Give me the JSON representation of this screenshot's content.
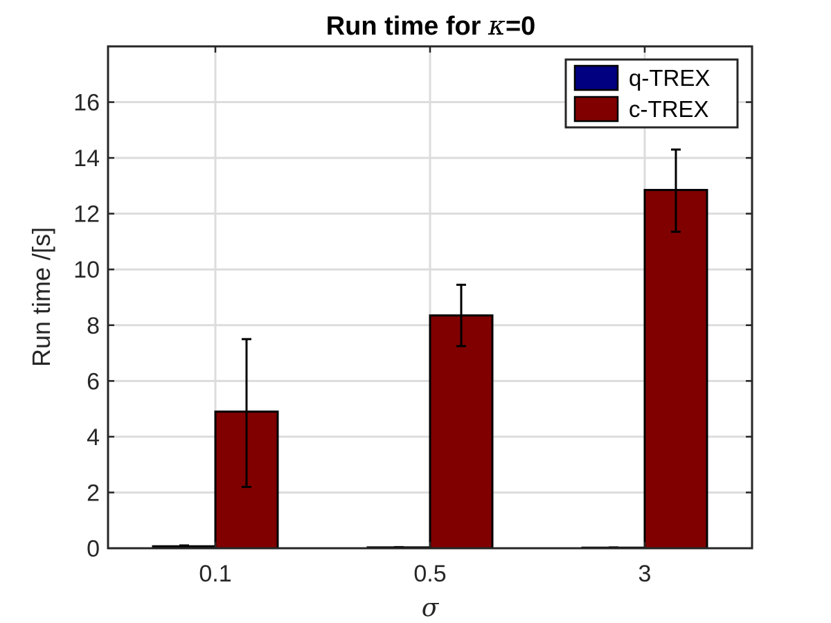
{
  "chart_data": {
    "type": "bar",
    "title": "Run time for κ=0",
    "title_prefix": "Run time for ",
    "title_symbol": "κ",
    "title_suffix": "=0",
    "xlabel": "σ",
    "ylabel": "Run time  /[s]",
    "categories": [
      "0.1",
      "0.5",
      "3"
    ],
    "ylim": [
      0,
      18
    ],
    "yticks": [
      0,
      2,
      4,
      6,
      8,
      10,
      12,
      14,
      16
    ],
    "grid": true,
    "legend_position": "top-right",
    "series": [
      {
        "name": "q-TREX",
        "color": "#000080",
        "values": [
          0.07,
          0.03,
          0.02
        ],
        "error_low": [
          0.05,
          0.02,
          0.01
        ],
        "error_high": [
          0.1,
          0.04,
          0.03
        ]
      },
      {
        "name": "c-TREX",
        "color": "#800000",
        "values": [
          4.9,
          8.35,
          12.85
        ],
        "error_low": [
          2.2,
          7.25,
          11.35
        ],
        "error_high": [
          7.5,
          9.45,
          14.3
        ]
      }
    ]
  }
}
